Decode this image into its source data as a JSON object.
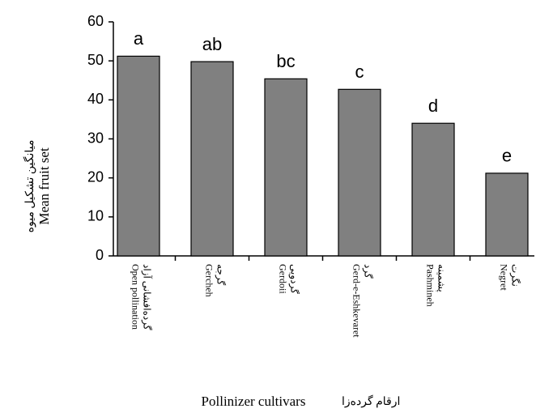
{
  "chart_data": {
    "type": "bar",
    "categories": [
      "Open pollination",
      "Gercheh",
      "Gerdoii",
      "Gerd-e-Eshkevaret",
      "Pashmineh",
      "Negret"
    ],
    "categories_fa": [
      "گرده‌افشانی آزاد",
      "گرجه",
      "گردویی",
      "گرد",
      "پشمینه",
      "نگرت"
    ],
    "values": [
      51.2,
      49.8,
      45.4,
      42.7,
      34,
      21.2
    ],
    "group_labels": [
      "a",
      "ab",
      "bc",
      "c",
      "d",
      "e"
    ],
    "color": "#808080",
    "ylim": [
      0,
      60
    ],
    "yticks": [
      0,
      10,
      20,
      30,
      40,
      50,
      60
    ],
    "y_label": "Mean fruit set",
    "y_label_fa": "میانگین تشکیل میوه",
    "x_label": "Pollinizer cultivars",
    "x_label_fa": "ارقام گرده‌زا"
  }
}
